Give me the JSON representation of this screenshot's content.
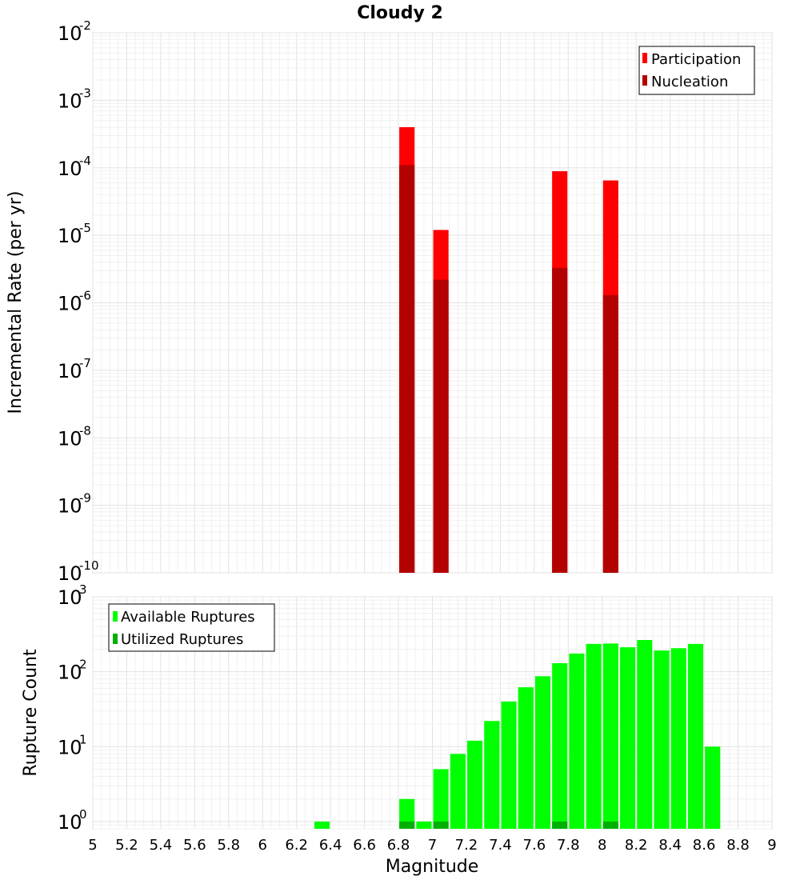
{
  "chart_data": [
    {
      "type": "bar",
      "title": "Cloudy 2",
      "ylabel": "Incremental Rate (per yr)",
      "xlabel": "",
      "xlim": [
        5,
        9
      ],
      "yscale": "log",
      "ylim": [
        1e-10,
        0.01
      ],
      "y_tick_exponents": [
        "-10",
        "-9",
        "-8",
        "-7",
        "-6",
        "-5",
        "-4",
        "-3",
        "-2"
      ],
      "y_tick_base": "10",
      "grid": true,
      "legend_placement": "top-right",
      "bar_width": 0.09,
      "series": [
        {
          "name": "Participation",
          "color": "#ff0000",
          "points": [
            {
              "x": 6.85,
              "y": 0.0004
            },
            {
              "x": 7.05,
              "y": 1.2e-05
            },
            {
              "x": 7.75,
              "y": 8.9e-05
            },
            {
              "x": 8.05,
              "y": 6.5e-05
            }
          ]
        },
        {
          "name": "Nucleation",
          "color": "#b30000",
          "points": [
            {
              "x": 6.85,
              "y": 0.00011
            },
            {
              "x": 7.05,
              "y": 2.2e-06
            },
            {
              "x": 7.75,
              "y": 3.3e-06
            },
            {
              "x": 8.05,
              "y": 1.3e-06
            }
          ]
        }
      ]
    },
    {
      "type": "bar",
      "title": "",
      "ylabel": "Rupture Count",
      "xlabel": "Magnitude",
      "xlim": [
        5,
        9
      ],
      "yscale": "log",
      "ylim": [
        0.8,
        1000
      ],
      "y_tick_exponents": [
        "0",
        "1",
        "2",
        "3"
      ],
      "y_tick_base": "10",
      "x_ticks": [
        "5",
        "5.2",
        "5.4",
        "5.6",
        "5.8",
        "6",
        "6.2",
        "6.4",
        "6.6",
        "6.8",
        "7",
        "7.2",
        "7.4",
        "7.6",
        "7.8",
        "8",
        "8.2",
        "8.4",
        "8.6",
        "8.8",
        "9"
      ],
      "grid": true,
      "legend_placement": "top-left",
      "bar_width": 0.09,
      "series": [
        {
          "name": "Available Ruptures",
          "color": "#00ff00",
          "points": [
            {
              "x": 6.35,
              "y": 1
            },
            {
              "x": 6.85,
              "y": 2
            },
            {
              "x": 6.95,
              "y": 1
            },
            {
              "x": 7.05,
              "y": 5
            },
            {
              "x": 7.15,
              "y": 8
            },
            {
              "x": 7.25,
              "y": 12
            },
            {
              "x": 7.35,
              "y": 22
            },
            {
              "x": 7.45,
              "y": 40
            },
            {
              "x": 7.55,
              "y": 62
            },
            {
              "x": 7.65,
              "y": 87
            },
            {
              "x": 7.75,
              "y": 130
            },
            {
              "x": 7.85,
              "y": 175
            },
            {
              "x": 7.95,
              "y": 235
            },
            {
              "x": 8.05,
              "y": 238
            },
            {
              "x": 8.15,
              "y": 212
            },
            {
              "x": 8.25,
              "y": 265
            },
            {
              "x": 8.35,
              "y": 192
            },
            {
              "x": 8.45,
              "y": 206
            },
            {
              "x": 8.55,
              "y": 235
            },
            {
              "x": 8.65,
              "y": 10
            }
          ]
        },
        {
          "name": "Utilized Ruptures",
          "color": "#00b000",
          "points": [
            {
              "x": 6.85,
              "y": 1
            },
            {
              "x": 7.05,
              "y": 1
            },
            {
              "x": 7.75,
              "y": 1
            },
            {
              "x": 8.05,
              "y": 1
            }
          ]
        }
      ]
    }
  ]
}
